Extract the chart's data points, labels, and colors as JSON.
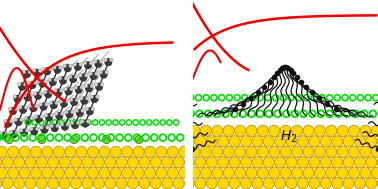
{
  "bg_color": "#ffffff",
  "gold_color": "#FFD700",
  "gold_edge": "#B8860B",
  "green_color": "#00DD00",
  "red_color": "#EE0000",
  "black_color": "#111111",
  "dark_atom": "#444444",
  "light_atom": "#BBBBBB",
  "h2_text": "H2",
  "figw": 3.78,
  "figh": 1.89,
  "dpi": 100
}
